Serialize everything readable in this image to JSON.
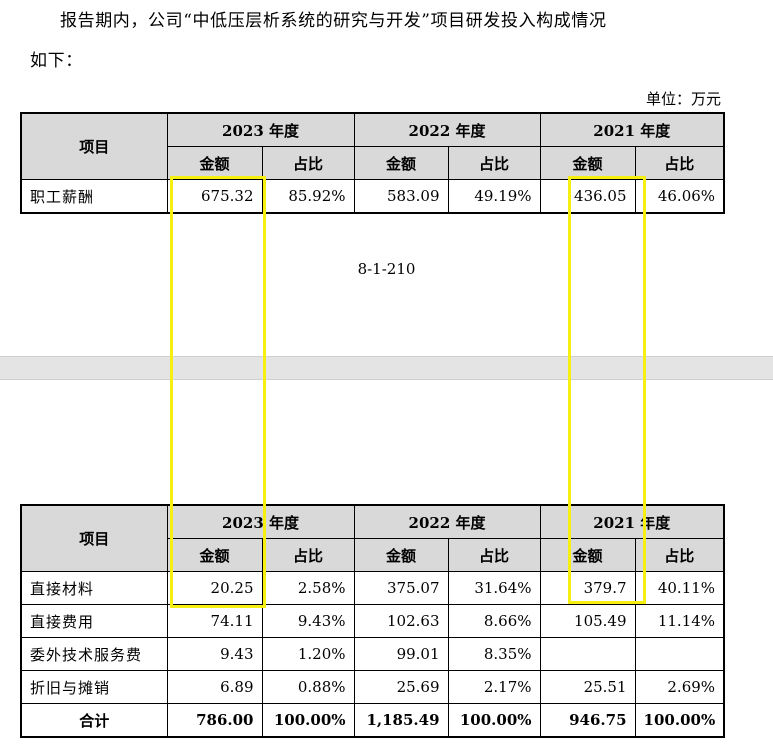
{
  "text": {
    "para_line1": "报告期内，公司“中低压层析系统的研究与开发”项目研发投入构成情况",
    "para_line2": "如下：",
    "unit": "单位：万元",
    "page_number": "8-1-210"
  },
  "table_headers": {
    "item": "项目",
    "years": [
      "2023 年度",
      "2022 年度",
      "2021 年度"
    ],
    "amount": "金额",
    "ratio": "占比"
  },
  "table1": {
    "rows": [
      {
        "label": "职工薪酬",
        "values": [
          "675.32",
          "85.92%",
          "583.09",
          "49.19%",
          "436.05",
          "46.06%"
        ]
      }
    ]
  },
  "table2": {
    "rows": [
      {
        "label": "直接材料",
        "values": [
          "20.25",
          "2.58%",
          "375.07",
          "31.64%",
          "379.7",
          "40.11%"
        ]
      },
      {
        "label": "直接费用",
        "values": [
          "74.11",
          "9.43%",
          "102.63",
          "8.66%",
          "105.49",
          "11.14%"
        ]
      },
      {
        "label": "委外技术服务费",
        "values": [
          "9.43",
          "1.20%",
          "99.01",
          "8.35%",
          "",
          ""
        ]
      },
      {
        "label": "折旧与摊销",
        "values": [
          "6.89",
          "0.88%",
          "25.69",
          "2.17%",
          "25.51",
          "2.69%"
        ]
      }
    ],
    "total": {
      "label": "合计",
      "values": [
        "786.00",
        "100.00%",
        "1,185.49",
        "100.00%",
        "946.75",
        "100.00%"
      ]
    }
  },
  "highlight_color": "#f5ef12"
}
